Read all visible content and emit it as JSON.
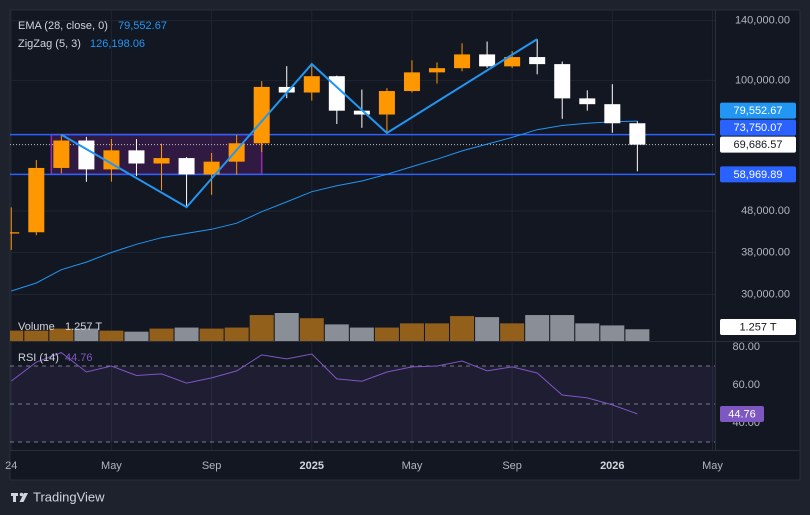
{
  "chart_data": {
    "type": "candlestick",
    "xlim": [
      -0.05,
      28.1
    ],
    "xticks": [
      {
        "value": 0,
        "label": "24"
      },
      {
        "value": 4,
        "label": "May"
      },
      {
        "value": 8,
        "label": "Sep"
      },
      {
        "value": 12,
        "label": "2025"
      },
      {
        "value": 16,
        "label": "May"
      },
      {
        "value": 20,
        "label": "Sep"
      },
      {
        "value": 24,
        "label": "2026"
      },
      {
        "value": 28,
        "label": "May"
      }
    ],
    "ylim": [
      23100,
      148600
    ],
    "log": true,
    "yticks": [
      {
        "value": 140000,
        "label": "140,000.00"
      },
      {
        "value": 100000,
        "label": "100,000.00"
      },
      {
        "value": 48000,
        "label": "48,000.00"
      },
      {
        "value": 38000,
        "label": "38,000.00"
      },
      {
        "value": 30000,
        "label": "30,000.00"
      }
    ],
    "grid": true,
    "up_color": "#ff9800",
    "down_color": "#ffffff",
    "open": [
      42280,
      42580,
      61130,
      71330,
      60640,
      67490,
      62680,
      64620,
      58970,
      63330,
      70220,
      96410,
      93430,
      102410,
      84350,
      82550,
      94210,
      104640,
      107140,
      115760,
      108240,
      114050,
      109610,
      90400,
      87500,
      78600
    ],
    "high": [
      48970,
      63900,
      73750.07,
      72800,
      71950,
      71960,
      70080,
      65000,
      66500,
      73620,
      99590,
      108350,
      109590,
      102750,
      95000,
      95750,
      111980,
      110600,
      123200,
      124460,
      117900,
      126198.06,
      111200,
      94600,
      97900,
      79500
    ],
    "low": [
      38550,
      41880,
      59320,
      56550,
      56590,
      58400,
      53900,
      49050,
      52550,
      58900,
      66830,
      90500,
      89260,
      78260,
      76610,
      74400,
      93380,
      98240,
      105300,
      107350,
      107270,
      103500,
      80600,
      84400,
      74500,
      60000
    ],
    "close": [
      42580,
      61130,
      71330,
      60640,
      67490,
      62680,
      64620,
      58970,
      63330,
      70220,
      96410,
      93430,
      102410,
      84350,
      82550,
      94210,
      104640,
      107140,
      115760,
      108240,
      114050,
      109610,
      90400,
      87500,
      78600,
      69686.57
    ],
    "current": {
      "value": 69686.57,
      "label": "69,686.57"
    },
    "levels": [
      {
        "value": 73750.07,
        "label": "73,750.07"
      },
      {
        "value": 58969.89,
        "label": "58,969.89"
      }
    ],
    "level_color": "#2962ff",
    "box_color": "#9c27b0",
    "ema": {
      "name": "EMA (28, close, 0)",
      "color": "#2196f3",
      "last": {
        "value": 79552.67,
        "label": "79,552.67"
      },
      "values": [
        30600,
        32000,
        34500,
        36000,
        38000,
        39800,
        41300,
        42300,
        43300,
        44800,
        47800,
        50500,
        53500,
        55300,
        56800,
        59000,
        61600,
        64200,
        67300,
        69900,
        72600,
        75800,
        77600,
        78600,
        79300,
        79552.67
      ]
    },
    "zigzag": {
      "name": "ZigZag (5, 3)",
      "color": "#2196f3",
      "last": {
        "value": 126198.06,
        "label": "126,198.06"
      },
      "x": [
        2,
        7,
        12,
        15,
        21
      ],
      "values": [
        73750.07,
        49050,
        109590,
        74400,
        126198.06
      ]
    },
    "volume": {
      "name": "Volume",
      "up_color": "#93601c",
      "down_color": "#8a8e97",
      "last": {
        "value": 1.257,
        "label": "1.257 T"
      },
      "values": [
        1.11,
        1.11,
        1.33,
        1.33,
        1.11,
        1.0,
        1.33,
        1.44,
        1.33,
        1.44,
        2.78,
        3.0,
        2.44,
        1.78,
        1.44,
        1.44,
        1.89,
        1.89,
        2.67,
        2.56,
        1.89,
        2.78,
        2.78,
        1.89,
        1.67,
        1.257
      ]
    },
    "rsi": {
      "name": "RSI (14)",
      "color": "#7e57c2",
      "last": {
        "value": 44.76,
        "label": "44.76"
      },
      "ylim": [
        25.8,
        82.6
      ],
      "yticks": [
        {
          "value": 80,
          "label": "80.00"
        },
        {
          "value": 60,
          "label": "60.00"
        },
        {
          "value": 40,
          "label": "40.00"
        }
      ],
      "bands": [
        70,
        50,
        30
      ],
      "values": [
        62.1,
        72.0,
        77.0,
        66.8,
        70.0,
        65.0,
        65.8,
        61.0,
        63.7,
        67.4,
        75.8,
        73.7,
        76.3,
        63.2,
        62.0,
        66.8,
        69.5,
        70.0,
        72.6,
        67.4,
        69.5,
        66.3,
        54.7,
        53.2,
        49.5,
        44.76
      ]
    }
  },
  "footer": {
    "brand": "TradingView"
  }
}
